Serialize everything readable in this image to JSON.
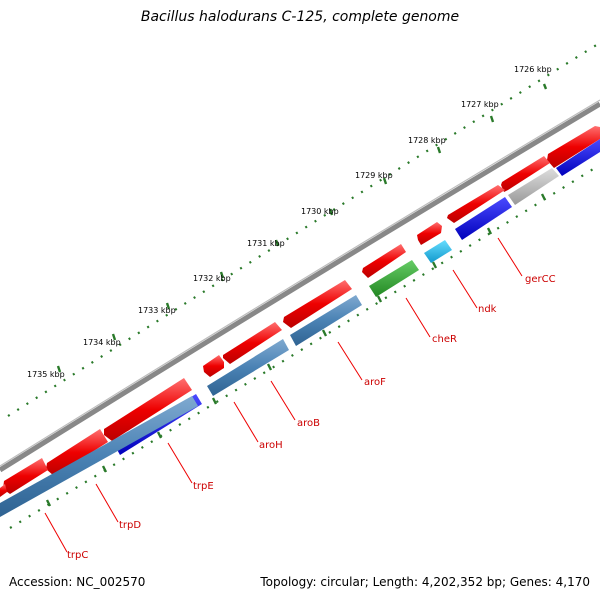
{
  "title": "Bacillus halodurans C-125, complete genome",
  "footer": {
    "accession": "Accession: NC_002570",
    "topology": "Topology: circular; Length: 4,202,352 bp; Genes: 4,170"
  },
  "colors": {
    "backbone": "#888888",
    "forward_gene": "#ff0000",
    "reverse_gene": "#4a82b4",
    "dark_blue_gene": "#0000ee",
    "cyan_gene": "#22bbee",
    "green_gene": "#33aa33",
    "gray_gene": "#bbbbbb",
    "tick": "#2a7a2a",
    "label_line": "#ee0000"
  },
  "kbp_labels": [
    "1726 kbp",
    "1727 kbp",
    "1728 kbp",
    "1729 kbp",
    "1730 kbp",
    "1731 kbp",
    "1732 kbp",
    "1733 kbp",
    "1734 kbp",
    "1735 kbp"
  ],
  "gene_labels": [
    "gerCC",
    "ndk",
    "cheR",
    "aroF",
    "aroB",
    "aroH",
    "trpE",
    "trpD",
    "trpC"
  ]
}
